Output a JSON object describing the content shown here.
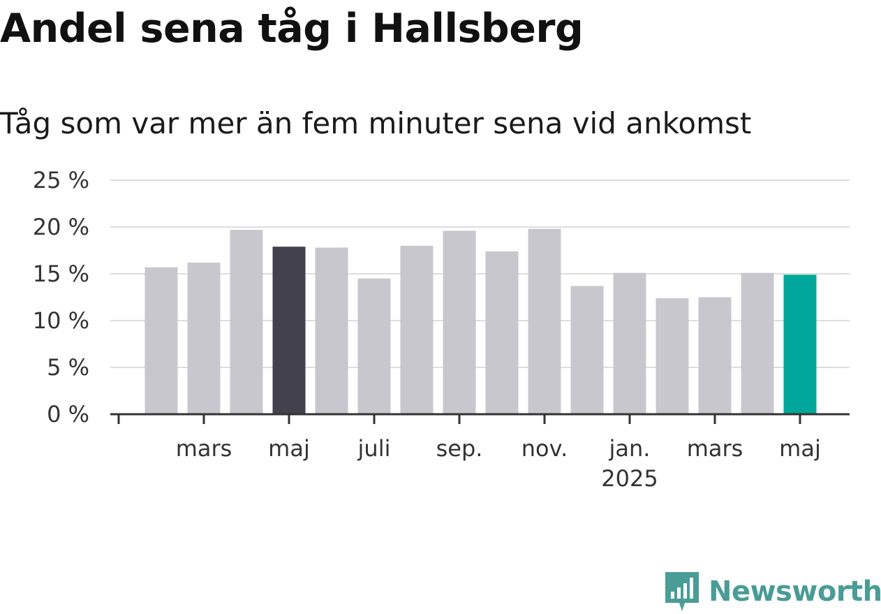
{
  "title": "Andel sena tåg i Hallsberg",
  "subtitle": "Tåg som var mer än fem minuter sena vid ankomst",
  "brand": {
    "name": "Newsworthy",
    "icon": "bar-chart-speech-bubble-icon",
    "color": "#4a9c96"
  },
  "colors": {
    "bar_default": "#c8c7cd",
    "bar_highlight": "#43414d",
    "bar_latest": "#00a79a",
    "grid": "#dddddd",
    "axis": "#333333"
  },
  "chart_data": {
    "type": "bar",
    "categories": [
      "feb. 2024",
      "mars 2024",
      "apr. 2024",
      "maj 2024",
      "juni 2024",
      "juli 2024",
      "aug. 2024",
      "sep. 2024",
      "okt. 2024",
      "nov. 2024",
      "dec. 2024",
      "jan. 2025",
      "feb. 2025",
      "mars 2025",
      "apr. 2025",
      "maj 2025"
    ],
    "values": [
      15.7,
      16.2,
      19.7,
      17.9,
      17.8,
      14.5,
      18.0,
      19.6,
      17.4,
      19.8,
      13.7,
      15.1,
      12.4,
      12.5,
      15.1,
      14.9
    ],
    "highlight": [
      "maj 2024",
      "maj 2025"
    ],
    "x_tick_labels": [
      "mars",
      "maj",
      "juli",
      "sep.",
      "nov.",
      "jan.",
      "mars",
      "maj"
    ],
    "x_tick_year_label": "2025",
    "y_ticks": [
      "0 %",
      "5 %",
      "10 %",
      "15 %",
      "20 %",
      "25 %"
    ],
    "y_tick_values": [
      0,
      5,
      10,
      15,
      20,
      25
    ],
    "ylim": [
      0,
      25
    ],
    "xlabel": "",
    "ylabel": "",
    "grid": true,
    "legend": "none"
  }
}
